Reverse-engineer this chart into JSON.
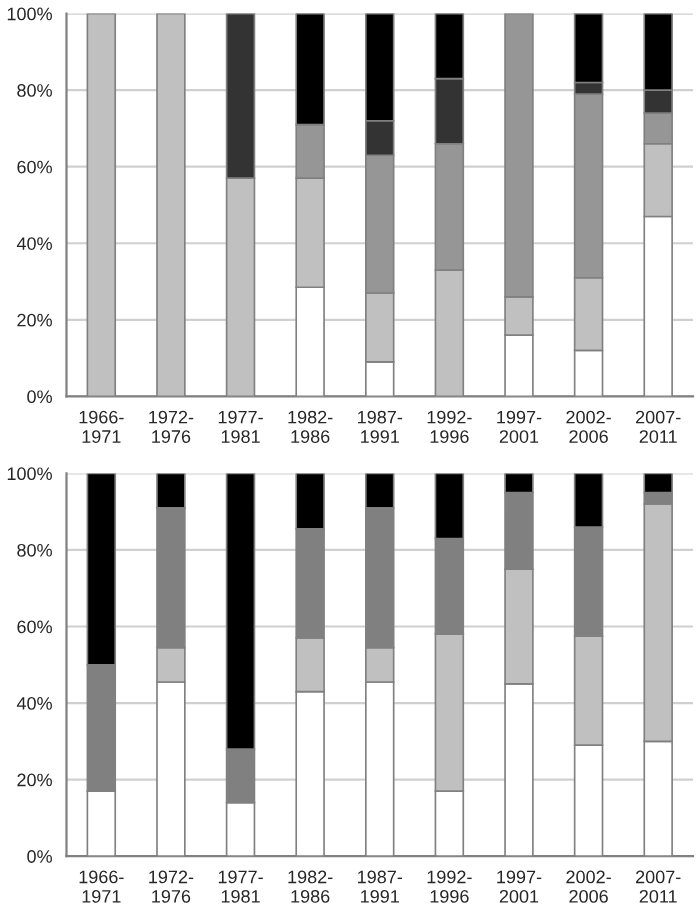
{
  "chart_data": [
    {
      "type": "bar",
      "stacked": true,
      "categories": [
        "1966-\n1971",
        "1972-\n1976",
        "1977-\n1981",
        "1982-\n1986",
        "1987-\n1991",
        "1992-\n1996",
        "1997-\n2001",
        "2002-\n2006",
        "2007-\n2011"
      ],
      "series": [
        {
          "color": "#ffffff",
          "values": [
            null,
            null,
            null,
            28.5,
            9,
            null,
            16,
            12,
            47
          ]
        },
        {
          "color": "#c0c0c0",
          "values": [
            100,
            100,
            57,
            28.5,
            18,
            33,
            10,
            19,
            19
          ]
        },
        {
          "color": "#969696",
          "values": [
            null,
            null,
            null,
            14,
            36,
            33,
            74,
            48,
            8
          ]
        },
        {
          "color": "#333333",
          "values": [
            null,
            null,
            43,
            null,
            9,
            17,
            null,
            3,
            6
          ]
        },
        {
          "color": "#000000",
          "values": [
            null,
            null,
            null,
            29,
            28,
            17,
            null,
            18,
            20
          ]
        }
      ],
      "ylim": [
        0,
        100
      ],
      "yticks": [
        {
          "value": 0,
          "label": "0%"
        },
        {
          "value": 20,
          "label": "20%"
        },
        {
          "value": 40,
          "label": "40%"
        },
        {
          "value": 60,
          "label": "60%"
        },
        {
          "value": 80,
          "label": "80%"
        },
        {
          "value": 100,
          "label": "100%"
        }
      ],
      "grid": "y",
      "legend": false
    },
    {
      "type": "bar",
      "stacked": true,
      "categories": [
        "1966-\n1971",
        "1972-\n1976",
        "1977-\n1981",
        "1982-\n1986",
        "1987-\n1991",
        "1992-\n1996",
        "1997-\n2001",
        "2002-\n2006",
        "2007-\n2011"
      ],
      "series": [
        {
          "color": "#ffffff",
          "values": [
            17,
            45.5,
            14,
            43,
            45.5,
            17,
            45,
            29,
            30
          ]
        },
        {
          "color": "#c0c0c0",
          "values": [
            null,
            9,
            null,
            14,
            9,
            41,
            30,
            28.5,
            62
          ]
        },
        {
          "color": "#808080",
          "values": [
            33,
            36.5,
            14,
            28.5,
            36.5,
            25,
            20,
            28.5,
            3
          ]
        },
        {
          "color": "#000000",
          "values": [
            50,
            9,
            72,
            14.5,
            9,
            17,
            5,
            14,
            5
          ]
        }
      ],
      "ylim": [
        0,
        100
      ],
      "yticks": [
        {
          "value": 0,
          "label": "0%"
        },
        {
          "value": 20,
          "label": "20%"
        },
        {
          "value": 40,
          "label": "40%"
        },
        {
          "value": 60,
          "label": "60%"
        },
        {
          "value": 80,
          "label": "80%"
        },
        {
          "value": 100,
          "label": "100%"
        }
      ],
      "grid": "y",
      "legend": false
    }
  ]
}
